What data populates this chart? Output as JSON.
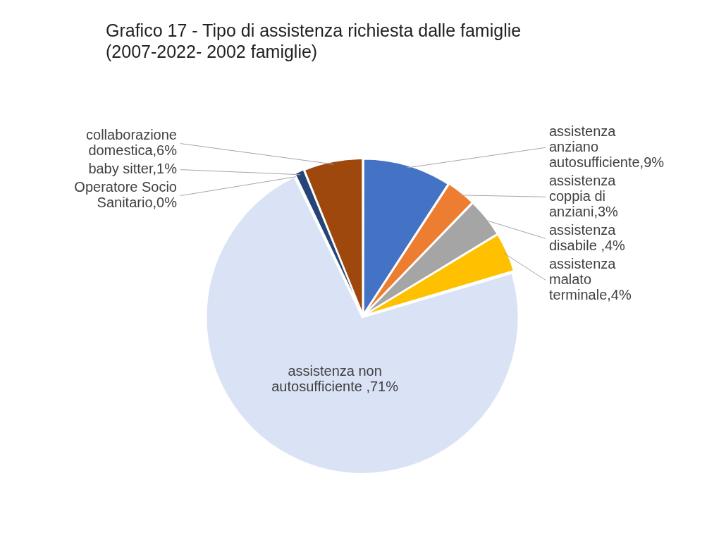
{
  "chart_data": {
    "type": "pie",
    "title": "Grafico 17 - Tipo di assistenza richiesta dalle famiglie (2007-2022- 2002 famiglie)",
    "categories": [
      "assistenza anziano autosufficiente",
      "assistenza coppia di anziani",
      "assistenza disabile ",
      "assistenza malato terminale",
      "assistenza non autosufficiente ",
      "Operatore Socio Sanitario",
      "baby sitter",
      "collaborazione domestica"
    ],
    "values": [
      9,
      3,
      4,
      4,
      71,
      0,
      1,
      6
    ],
    "value_labels": [
      ",9%",
      ",3%",
      ",4%",
      ",4%",
      ",71%",
      ",0%",
      ",1%",
      ",6%"
    ],
    "colors": [
      "#4472c4",
      "#ed7d31",
      "#a5a5a5",
      "#ffc000",
      "#dae3f5",
      "#70ad47",
      "#264478",
      "#9e480e"
    ],
    "legend": false
  }
}
